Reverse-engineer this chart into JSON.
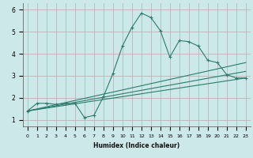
{
  "xlabel": "Humidex (Indice chaleur)",
  "bg_color": "#cce8e8",
  "grid_color": "#c0a8a8",
  "line_color": "#2d7b6e",
  "xlim": [
    -0.5,
    23.5
  ],
  "ylim": [
    0.7,
    6.3
  ],
  "yticks": [
    1,
    2,
    3,
    4,
    5,
    6
  ],
  "xticks": [
    0,
    1,
    2,
    3,
    4,
    5,
    6,
    7,
    8,
    9,
    10,
    11,
    12,
    13,
    14,
    15,
    16,
    17,
    18,
    19,
    20,
    21,
    22,
    23
  ],
  "series1_x": [
    0,
    1,
    2,
    3,
    4,
    5,
    6,
    7,
    8,
    9,
    10,
    11,
    12,
    13,
    14,
    15,
    16,
    17,
    18,
    19,
    20,
    21,
    22,
    23
  ],
  "series1_y": [
    1.4,
    1.75,
    1.75,
    1.7,
    1.75,
    1.75,
    1.1,
    1.2,
    2.05,
    3.1,
    4.35,
    5.2,
    5.85,
    5.65,
    5.05,
    3.85,
    4.6,
    4.55,
    4.35,
    3.7,
    3.6,
    3.05,
    2.9,
    2.9
  ],
  "series2_x": [
    0,
    23
  ],
  "series2_y": [
    1.4,
    2.9
  ],
  "series3_x": [
    0,
    23
  ],
  "series3_y": [
    1.4,
    3.2
  ],
  "series4_x": [
    0,
    23
  ],
  "series4_y": [
    1.4,
    3.6
  ]
}
